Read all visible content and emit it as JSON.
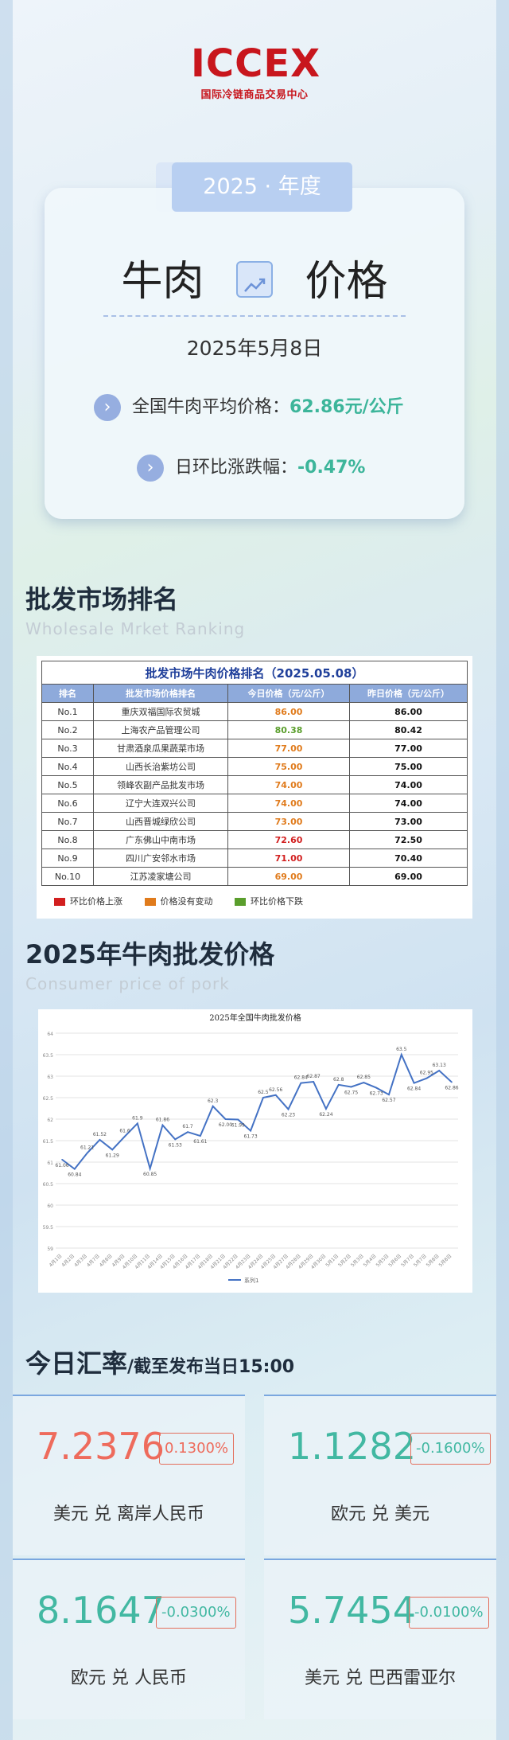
{
  "logo": {
    "mark": "ICCEX",
    "subtitle": "国际冷链商品交易中心"
  },
  "header": {
    "year_tab": "2025 · 年度",
    "title_left": "牛肉",
    "title_right": "价格",
    "date": "2025年5月8日",
    "avg_label": "全国牛肉平均价格：",
    "avg_value": "62.86元/公斤",
    "change_label": "日环比涨跌幅：",
    "change_value": "-0.47%",
    "accent": "#3cb59a"
  },
  "ranking": {
    "title": "批发市场排名",
    "title_en": "Wholesale Mrket Ranking",
    "table_caption": "批发市场牛肉价格排名（2025.05.08）",
    "headers": [
      "排名",
      "批发市场价格排名",
      "今日价格（元/公斤）",
      "昨日价格（元/公斤）"
    ],
    "rows": [
      {
        "rank": "No.1",
        "market": "重庆双福国际农贸城",
        "today": "86.00",
        "yesterday": "86.00",
        "trend": "same"
      },
      {
        "rank": "No.2",
        "market": "上海农产品管理公司",
        "today": "80.38",
        "yesterday": "80.42",
        "trend": "down"
      },
      {
        "rank": "No.3",
        "market": "甘肃酒泉瓜果蔬菜市场",
        "today": "77.00",
        "yesterday": "77.00",
        "trend": "same"
      },
      {
        "rank": "No.4",
        "market": "山西长治紫坊公司",
        "today": "75.00",
        "yesterday": "75.00",
        "trend": "same"
      },
      {
        "rank": "No.5",
        "market": "领峰农副产品批发市场",
        "today": "74.00",
        "yesterday": "74.00",
        "trend": "same"
      },
      {
        "rank": "No.6",
        "market": "辽宁大连双兴公司",
        "today": "74.00",
        "yesterday": "74.00",
        "trend": "same"
      },
      {
        "rank": "No.7",
        "market": "山西晋城绿欣公司",
        "today": "73.00",
        "yesterday": "73.00",
        "trend": "same"
      },
      {
        "rank": "No.8",
        "market": "广东佛山中南市场",
        "today": "72.60",
        "yesterday": "72.50",
        "trend": "up"
      },
      {
        "rank": "No.9",
        "market": "四川广安邻水市场",
        "today": "71.00",
        "yesterday": "70.40",
        "trend": "up"
      },
      {
        "rank": "No.10",
        "market": "江苏凌家塘公司",
        "today": "69.00",
        "yesterday": "69.00",
        "trend": "same"
      }
    ],
    "legend": [
      {
        "label": "环比价格上涨",
        "color": "#d21f1f"
      },
      {
        "label": "价格没有变动",
        "color": "#e07b1c"
      },
      {
        "label": "环比价格下跌",
        "color": "#5a9e2c"
      }
    ]
  },
  "price_section": {
    "title": "2025年牛肉批发价格",
    "title_en": "Consumer price of pork"
  },
  "chart_data": {
    "type": "line",
    "title": "2025年全国牛肉批发价格",
    "ylim": [
      59,
      64
    ],
    "yticks": [
      "59",
      "59.5",
      "60",
      "60.5",
      "61",
      "61.5",
      "62",
      "62.5",
      "63",
      "63.5",
      "64"
    ],
    "grid": true,
    "legend": "bottom",
    "series": [
      {
        "name": "系列1",
        "color": "#4472c4",
        "values": [
          61.06,
          60.84,
          61.21,
          61.52,
          61.29,
          61.6,
          61.9,
          60.85,
          61.86,
          61.53,
          61.7,
          61.61,
          62.3,
          62.0,
          61.99,
          61.73,
          62.5,
          62.56,
          62.23,
          62.84,
          62.87,
          62.24,
          62.8,
          62.75,
          62.85,
          62.73,
          62.57,
          63.5,
          62.84,
          62.95,
          63.13,
          62.86
        ],
        "labels": [
          "61.06",
          "60.84",
          "61.21",
          "61.52",
          "61.29",
          "61.6",
          "61.9",
          "60.85",
          "61.86",
          "61.53",
          "61.7",
          "61.61",
          "62.3",
          "62.00",
          "61.99",
          "61.73",
          "62.5",
          "62.56",
          "62.23",
          "62.84",
          "62.87",
          "62.24",
          "62.8",
          "62.75",
          "62.85",
          "62.73",
          "62.57",
          "63.5",
          "62.84",
          "62.95",
          "63.13",
          "62.86"
        ]
      }
    ],
    "x": [
      "4月1日",
      "4月2日",
      "4月3日",
      "4月7日",
      "4月8日",
      "4月9日",
      "4月10日",
      "4月11日",
      "4月14日",
      "4月15日",
      "4月16日",
      "4月17日",
      "4月18日",
      "4月21日",
      "4月22日",
      "4月23日",
      "4月24日",
      "4月25日",
      "4月27日",
      "4月28日",
      "4月29日",
      "4月30日",
      "5月1日",
      "5月2日",
      "5月3日",
      "5月4日",
      "5月5日",
      "5月6日",
      "5月7日",
      "5月7日",
      "5月8日",
      "5月8日"
    ]
  },
  "rates": {
    "title": "今日汇率",
    "subtitle": "/截至发布当日15:00",
    "items": [
      {
        "value": "7.2376",
        "change": "0.1300%",
        "label": "美元 兑 离岸人民币",
        "color": "#ee6b5c"
      },
      {
        "value": "1.1282",
        "change": "-0.1600%",
        "label": "欧元 兑 美元",
        "color": "#42b8a2"
      },
      {
        "value": "8.1647",
        "change": "-0.0300%",
        "label": "欧元 兑 人民币",
        "color": "#42b8a2"
      },
      {
        "value": "5.7454",
        "change": "-0.0100%",
        "label": "美元 兑 巴西雷亚尔",
        "color": "#42b8a2"
      }
    ]
  }
}
